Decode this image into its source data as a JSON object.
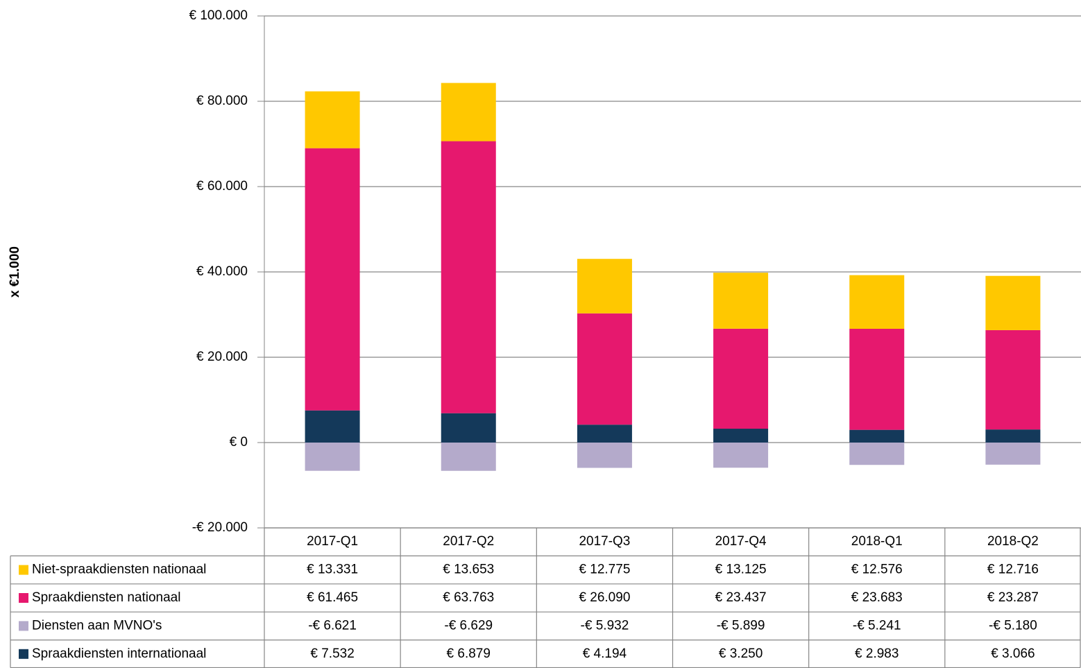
{
  "chart_data": {
    "type": "stacked_bar",
    "y_label": "x €1.000",
    "categories": [
      "2017-Q1",
      "2017-Q2",
      "2017-Q3",
      "2017-Q4",
      "2018-Q1",
      "2018-Q2"
    ],
    "series": [
      {
        "name": "Niet-spraakdiensten nationaal",
        "color": "#FFC800",
        "values": [
          13331,
          13653,
          12775,
          13125,
          12576,
          12716
        ],
        "value_labels": [
          "€ 13.331",
          "€ 13.653",
          "€ 12.775",
          "€ 13.125",
          "€ 12.576",
          "€ 12.716"
        ]
      },
      {
        "name": "Spraakdiensten nationaal",
        "color": "#E6186E",
        "values": [
          61465,
          63763,
          26090,
          23437,
          23683,
          23287
        ],
        "value_labels": [
          "€ 61.465",
          "€ 63.763",
          "€ 26.090",
          "€ 23.437",
          "€ 23.683",
          "€ 23.287"
        ]
      },
      {
        "name": "Diensten aan MVNO's",
        "color": "#B4AACB",
        "values": [
          -6621,
          -6629,
          -5932,
          -5899,
          -5241,
          -5180
        ],
        "value_labels": [
          "-€ 6.621",
          "-€ 6.629",
          "-€ 5.932",
          "-€ 5.899",
          "-€ 5.241",
          "-€ 5.180"
        ]
      },
      {
        "name": "Spraakdiensten internationaal",
        "color": "#14395A",
        "values": [
          7532,
          6879,
          4194,
          3250,
          2983,
          3066
        ],
        "value_labels": [
          "€ 7.532",
          "€ 6.879",
          "€ 4.194",
          "€ 3.250",
          "€ 2.983",
          "€ 3.066"
        ]
      }
    ],
    "ylim": [
      -20000,
      100000
    ],
    "yticks": [
      {
        "value": -20000,
        "label": "-€ 20.000"
      },
      {
        "value": 0,
        "label": "€ 0"
      },
      {
        "value": 20000,
        "label": "€ 20.000"
      },
      {
        "value": 40000,
        "label": "€ 40.000"
      },
      {
        "value": 60000,
        "label": "€ 60.000"
      },
      {
        "value": 80000,
        "label": "€ 80.000"
      },
      {
        "value": 100000,
        "label": "€ 100.000"
      }
    ],
    "grid": true
  }
}
